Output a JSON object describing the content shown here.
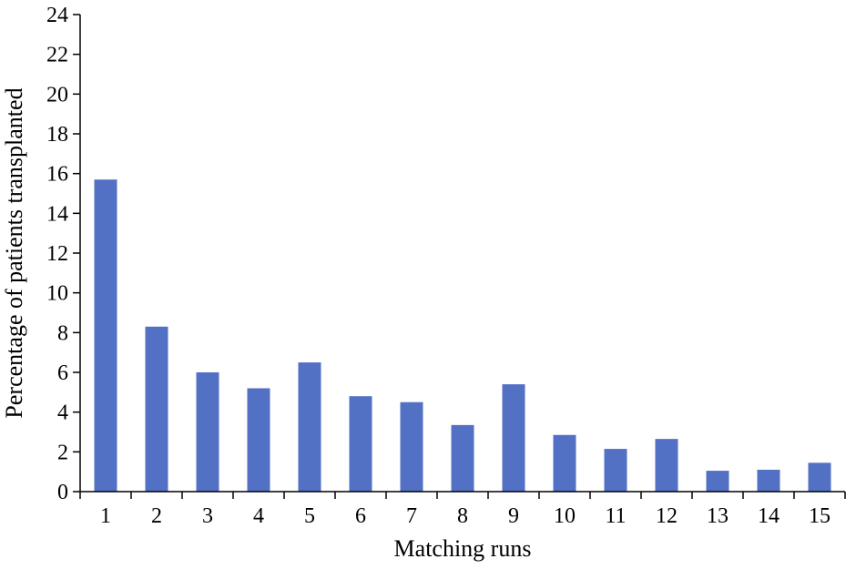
{
  "chart_data": {
    "type": "bar",
    "title": "",
    "xlabel": "Matching runs",
    "ylabel": "Percentage of patients transplanted",
    "categories": [
      "1",
      "2",
      "3",
      "4",
      "5",
      "6",
      "7",
      "8",
      "9",
      "10",
      "11",
      "12",
      "13",
      "14",
      "15"
    ],
    "values": [
      15.7,
      8.3,
      6.0,
      5.2,
      6.5,
      4.8,
      4.5,
      3.35,
      5.4,
      2.85,
      2.15,
      2.65,
      1.05,
      1.1,
      1.45
    ],
    "ylim": [
      0,
      24
    ],
    "yticks": [
      0,
      2,
      4,
      6,
      8,
      10,
      12,
      14,
      16,
      18,
      20,
      22,
      24
    ],
    "grid": false,
    "legend": "none",
    "bar_color": "#5371c4",
    "axis_color": "#000000"
  }
}
